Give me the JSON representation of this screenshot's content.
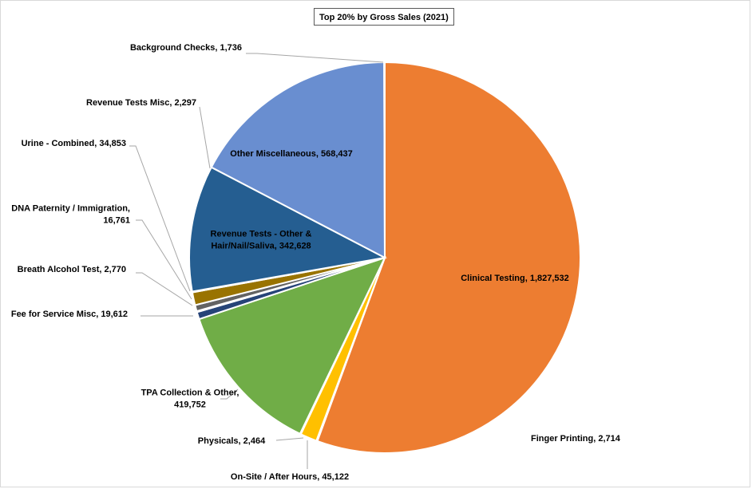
{
  "chart_data": {
    "type": "pie",
    "title": "Top 20% by Gross Sales (2021)",
    "series": [
      {
        "slices": [
          {
            "label": "Clinical Testing",
            "value": 1827532,
            "value_text": "1,827,532",
            "color": "#ED7D31"
          },
          {
            "label": "Finger Printing",
            "value": 2714,
            "value_text": "2,714",
            "color": "#A5A5A5"
          },
          {
            "label": "On-Site / After Hours",
            "value": 45122,
            "value_text": "45,122",
            "color": "#FFC000"
          },
          {
            "label": "Physicals",
            "value": 2464,
            "value_text": "2,464",
            "color": "#5B9BD5"
          },
          {
            "label": "TPA Collection & Other",
            "value": 419752,
            "value_text": "419,752",
            "color": "#70AD47"
          },
          {
            "label": "Fee for Service Misc",
            "value": 19612,
            "value_text": "19,612",
            "color": "#264478"
          },
          {
            "label": "Breath Alcohol Test",
            "value": 2770,
            "value_text": "2,770",
            "color": "#9E480E"
          },
          {
            "label": "DNA Paternity / Immigration",
            "value": 16761,
            "value_text": "16,761",
            "color": "#636363"
          },
          {
            "label": "Urine - Combined",
            "value": 34853,
            "value_text": "34,853",
            "color": "#997300"
          },
          {
            "label": "Revenue Tests Misc",
            "value": 2297,
            "value_text": "2,297",
            "color": "#43682B"
          },
          {
            "label": "Revenue Tests - Other & Hair/Nail/Saliva",
            "value": 342628,
            "value_text": "342,628",
            "color": "#255E91"
          },
          {
            "label": "Other Miscellaneous",
            "value": 568437,
            "value_text": "568,437",
            "color": "#698ED0"
          },
          {
            "label": "Background Checks",
            "value": 1736,
            "value_text": "1,736",
            "color": "#F1975A"
          }
        ]
      }
    ],
    "start_angle_deg": 0,
    "direction": "clockwise",
    "legend": "none",
    "data_labels": "category, value"
  }
}
